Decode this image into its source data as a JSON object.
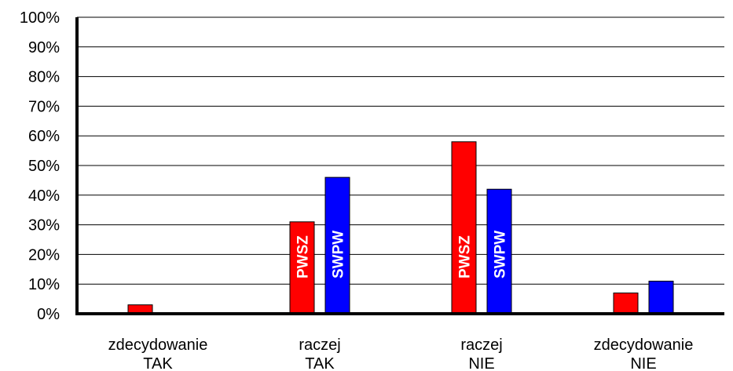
{
  "chart_data": {
    "type": "bar",
    "title": "",
    "xlabel": "",
    "ylabel": "",
    "ylim": [
      0,
      100
    ],
    "y_ticks": [
      "0%",
      "10%",
      "20%",
      "30%",
      "40%",
      "50%",
      "60%",
      "70%",
      "80%",
      "90%",
      "100%"
    ],
    "grid": true,
    "legend": "none",
    "categories": [
      [
        "zdecydowanie",
        "TAK"
      ],
      [
        "raczej",
        "TAK"
      ],
      [
        "raczej",
        "NIE"
      ],
      [
        "zdecydowanie",
        "NIE"
      ]
    ],
    "series": [
      {
        "name": "PWSZ",
        "color": "#ff0000",
        "values": [
          3,
          31,
          58,
          7
        ],
        "inline_labels": [
          false,
          true,
          true,
          false
        ]
      },
      {
        "name": "SWPW",
        "color": "#0000ff",
        "values": [
          0,
          46,
          42,
          11
        ],
        "inline_labels": [
          false,
          true,
          true,
          false
        ]
      }
    ]
  }
}
